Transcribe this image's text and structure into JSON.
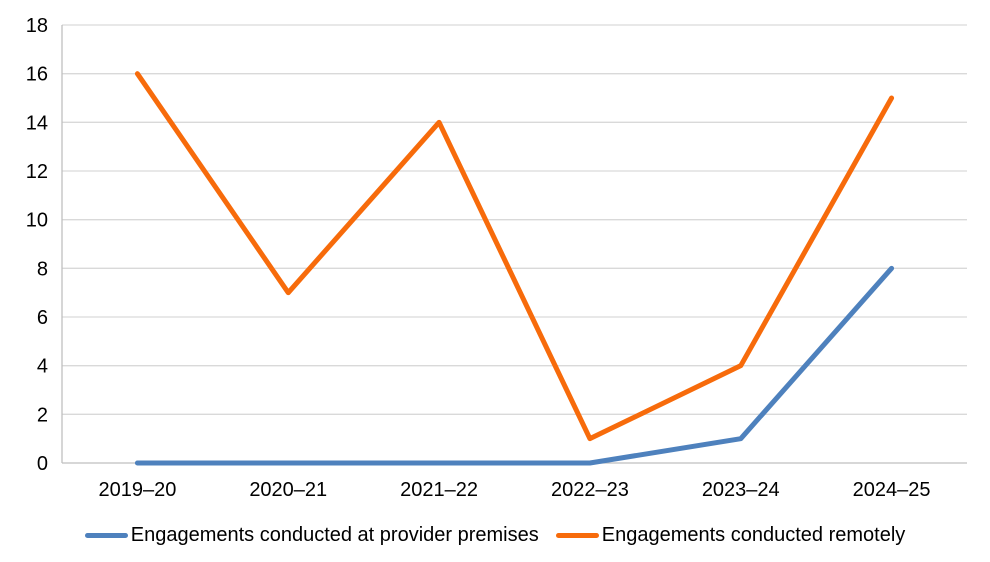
{
  "chart_data": {
    "type": "line",
    "categories": [
      "2019–20",
      "2020–21",
      "2021–22",
      "2022–23",
      "2023–24",
      "2024–25"
    ],
    "series": [
      {
        "name": "Engagements conducted at provider premises",
        "color": "#4E81BD",
        "values": [
          0,
          0,
          0,
          0,
          1,
          8
        ]
      },
      {
        "name": "Engagements conducted remotely",
        "color": "#F76B0B",
        "values": [
          16,
          7,
          14,
          1,
          4,
          15
        ]
      }
    ],
    "ylim": [
      0,
      18
    ],
    "ytick_step": 2,
    "yticks": [
      0,
      2,
      4,
      6,
      8,
      10,
      12,
      14,
      16,
      18
    ],
    "grid": true,
    "legend_position": "bottom",
    "colors": {
      "gridline": "#D9D9D9",
      "axis": "#BFBFBF",
      "text": "#000000"
    }
  }
}
